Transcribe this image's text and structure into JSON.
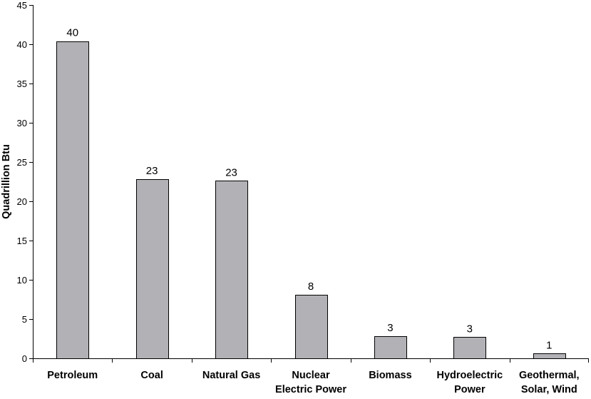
{
  "chart_data": {
    "type": "bar",
    "title": "",
    "xlabel": "",
    "ylabel": "Quadrillion Btu",
    "ylim": [
      0,
      45
    ],
    "yticks": [
      0,
      5,
      10,
      15,
      20,
      25,
      30,
      35,
      40,
      45
    ],
    "grid": false,
    "legend": "none",
    "categories": [
      [
        "Petroleum"
      ],
      [
        "Coal"
      ],
      [
        "Natural Gas"
      ],
      [
        "Nuclear",
        "Electric Power"
      ],
      [
        "Biomass"
      ],
      [
        "Hydroelectric",
        "Power"
      ],
      [
        "Geothermal,",
        "Solar, Wind"
      ]
    ],
    "values": [
      40.4,
      22.8,
      22.6,
      8.1,
      2.8,
      2.7,
      0.6
    ],
    "data_labels": [
      "40",
      "23",
      "23",
      "8",
      "3",
      "3",
      "1"
    ],
    "bar_color": "#b2b2b6",
    "bar_edge_color": "#000000"
  }
}
